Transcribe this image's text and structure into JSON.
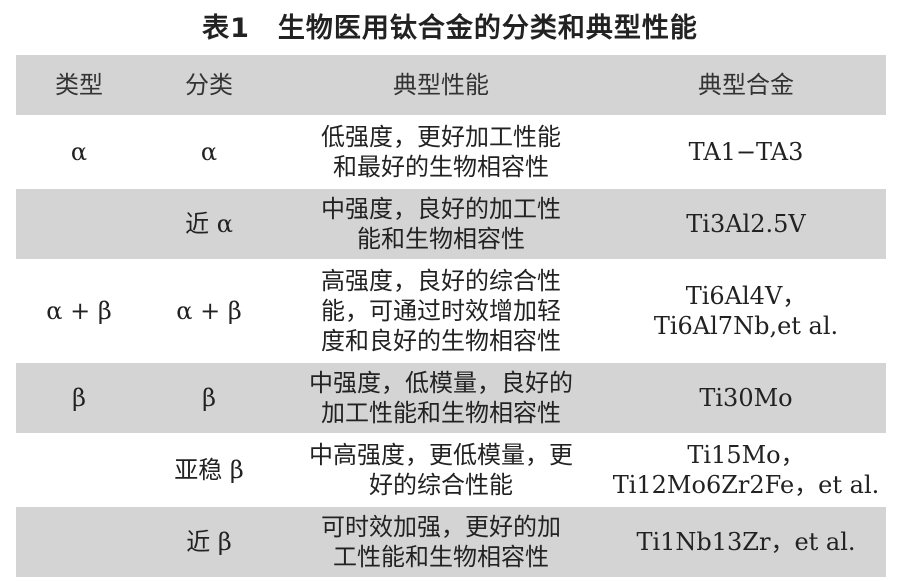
{
  "title": "表1　生物医用钛合金的分类和典型性能",
  "table": {
    "headers": [
      "类型",
      "分类",
      "典型性能",
      "典型合金"
    ],
    "rows": [
      {
        "type": "α",
        "class": "α",
        "props": [
          "低强度，更好加工性能",
          "和最好的生物相容性"
        ],
        "alloy": [
          "TA1−TA3"
        ]
      },
      {
        "type": "",
        "class": "近 α",
        "props": [
          "中强度，良好的加工性",
          "能和生物相容性"
        ],
        "alloy": [
          "Ti3Al2.5V"
        ]
      },
      {
        "type": "α + β",
        "class": "α + β",
        "props": [
          "高强度，良好的综合性",
          "能，可通过时效增加轻",
          "度和良好的生物相容性"
        ],
        "alloy": [
          "Ti6Al4V，",
          "Ti6Al7Nb,et al."
        ]
      },
      {
        "type": "β",
        "class": "β",
        "props": [
          "中强度，低模量，良好的",
          "加工性能和生物相容性"
        ],
        "alloy": [
          "Ti30Mo"
        ]
      },
      {
        "type": "",
        "class": "亚稳 β",
        "props": [
          "中高强度，更低模量，更",
          "好的综合性能"
        ],
        "alloy": [
          "Ti15Mo，",
          "Ti12Mo6Zr2Fe，et al."
        ]
      },
      {
        "type": "",
        "class": "近 β",
        "props": [
          "可时效加强，更好的加",
          "工性能和生物相容性"
        ],
        "alloy": [
          "Ti1Nb13Zr，et al."
        ]
      }
    ]
  }
}
